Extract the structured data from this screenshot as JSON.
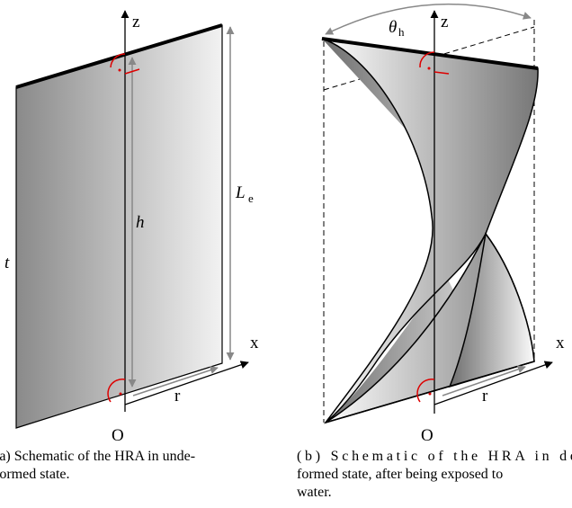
{
  "panel_a": {
    "labels": {
      "z": "z",
      "h": "h",
      "L": "L",
      "L_sub": "e",
      "t": "t",
      "x": "x",
      "O": "O",
      "r": "r"
    },
    "caption": [
      "(a) Schematic of the HRA in unde-",
      "formed state."
    ]
  },
  "panel_b": {
    "labels": {
      "theta": "θ",
      "theta_sub": "h",
      "z": "z",
      "x": "x",
      "O": "O",
      "r": "r"
    },
    "caption": [
      "(b) Schematic of the HRA in de-",
      "formed state, after being exposed to",
      "water."
    ]
  }
}
